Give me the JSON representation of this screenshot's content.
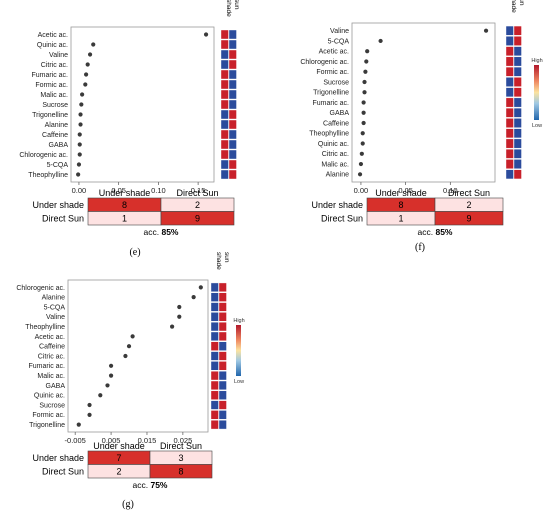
{
  "colors": {
    "high": "#c8202a",
    "low": "#2b4b9c",
    "dot": "#3a3a3a",
    "conf_high": "#d7302b",
    "conf_low": "#fde2e2"
  },
  "chart_data": [
    {
      "type": "scatter",
      "panel_label": "(e)",
      "features": [
        "Acetic ac.",
        "Quinic ac.",
        "Valine",
        "Citric ac.",
        "Fumaric ac.",
        "Formic ac.",
        "Malic ac.",
        "Sucrose",
        "Trigonelline",
        "Alanine",
        "Caffeine",
        "GABA",
        "Chlorogenic ac.",
        "5-CQA",
        "Theophylline"
      ],
      "values": [
        0.16,
        0.018,
        0.014,
        0.011,
        0.009,
        0.008,
        0.004,
        0.003,
        0.002,
        0.002,
        0.001,
        0.001,
        0.001,
        0.0,
        -0.001
      ],
      "xlim": [
        -0.01,
        0.17
      ],
      "xticks": [
        "0.00",
        "0.05",
        "0.10",
        "0.15"
      ],
      "xtick_values": [
        0,
        0.05,
        0.1,
        0.15
      ],
      "heat_headers": [
        "shade",
        "sun"
      ],
      "heat_colors": [
        [
          "high",
          "low"
        ],
        [
          "high",
          "low"
        ],
        [
          "low",
          "high"
        ],
        [
          "low",
          "high"
        ],
        [
          "high",
          "low"
        ],
        [
          "high",
          "low"
        ],
        [
          "high",
          "low"
        ],
        [
          "high",
          "low"
        ],
        [
          "low",
          "high"
        ],
        [
          "low",
          "high"
        ],
        [
          "high",
          "low"
        ],
        [
          "high",
          "low"
        ],
        [
          "high",
          "low"
        ],
        [
          "low",
          "high"
        ],
        [
          "low",
          "high"
        ]
      ],
      "show_color_legend": false,
      "confusion": {
        "columns": [
          "Under shade",
          "Direct Sun"
        ],
        "rows": [
          {
            "label": "Under shade",
            "values": [
              8,
              2
            ]
          },
          {
            "label": "Direct Sun",
            "values": [
              1,
              9
            ]
          }
        ],
        "accuracy_prefix": "acc.",
        "accuracy": "85%"
      }
    },
    {
      "type": "scatter",
      "panel_label": "(f)",
      "features": [
        "Valine",
        "5-CQA",
        "Acetic ac.",
        "Chlorogenic ac.",
        "Formic ac.",
        "Sucrose",
        "Trigonelline",
        "Fumaric ac.",
        "GABA",
        "Caffeine",
        "Theophylline",
        "Quinic ac.",
        "Citric ac.",
        "Malic ac.",
        "Alanine"
      ],
      "values": [
        0.14,
        0.022,
        0.007,
        0.006,
        0.005,
        0.004,
        0.004,
        0.003,
        0.003,
        0.003,
        0.002,
        0.002,
        0.001,
        0.0,
        -0.001
      ],
      "xlim": [
        -0.01,
        0.15
      ],
      "xticks": [
        "0.00",
        "0.05",
        "0.10"
      ],
      "xtick_values": [
        0,
        0.05,
        0.1
      ],
      "heat_headers": [
        "shade",
        "sun"
      ],
      "heat_colors": [
        [
          "low",
          "high"
        ],
        [
          "low",
          "high"
        ],
        [
          "high",
          "low"
        ],
        [
          "high",
          "low"
        ],
        [
          "high",
          "low"
        ],
        [
          "low",
          "high"
        ],
        [
          "low",
          "high"
        ],
        [
          "high",
          "low"
        ],
        [
          "high",
          "low"
        ],
        [
          "high",
          "low"
        ],
        [
          "high",
          "low"
        ],
        [
          "high",
          "low"
        ],
        [
          "high",
          "low"
        ],
        [
          "high",
          "low"
        ],
        [
          "low",
          "high"
        ]
      ],
      "show_color_legend": true,
      "legend_high": "High",
      "legend_low": "Low",
      "confusion": {
        "columns": [
          "Under shade",
          "Direct Sun"
        ],
        "rows": [
          {
            "label": "Under shade",
            "values": [
              8,
              2
            ]
          },
          {
            "label": "Direct Sun",
            "values": [
              1,
              9
            ]
          }
        ],
        "accuracy_prefix": "acc.",
        "accuracy": "85%"
      }
    },
    {
      "type": "scatter",
      "panel_label": "(g)",
      "features": [
        "Chlorogenic ac.",
        "Alanine",
        "5-CQA",
        "Valine",
        "Theophylline",
        "Acetic ac.",
        "Caffeine",
        "Citric ac.",
        "Fumaric ac.",
        "Malic ac.",
        "GABA",
        "Quinic ac.",
        "Sucrose",
        "Formic ac.",
        "Trigonelline"
      ],
      "values": [
        0.03,
        0.028,
        0.024,
        0.024,
        0.022,
        0.011,
        0.01,
        0.009,
        0.005,
        0.005,
        0.004,
        0.002,
        -0.001,
        -0.001,
        -0.004
      ],
      "xlim": [
        -0.007,
        0.032
      ],
      "xticks": [
        "-0.005",
        "0.005",
        "0.015",
        "0.025"
      ],
      "xtick_values": [
        -0.005,
        0.005,
        0.015,
        0.025
      ],
      "heat_headers": [
        "shade",
        "sun"
      ],
      "heat_colors": [
        [
          "low",
          "high"
        ],
        [
          "low",
          "high"
        ],
        [
          "low",
          "high"
        ],
        [
          "low",
          "high"
        ],
        [
          "low",
          "high"
        ],
        [
          "low",
          "high"
        ],
        [
          "high",
          "low"
        ],
        [
          "low",
          "high"
        ],
        [
          "low",
          "high"
        ],
        [
          "high",
          "low"
        ],
        [
          "high",
          "low"
        ],
        [
          "high",
          "low"
        ],
        [
          "low",
          "high"
        ],
        [
          "high",
          "low"
        ],
        [
          "high",
          "low"
        ]
      ],
      "show_color_legend": true,
      "legend_high": "High",
      "legend_low": "Low",
      "confusion": {
        "columns": [
          "Under shade",
          "Direct Sun"
        ],
        "rows": [
          {
            "label": "Under shade",
            "values": [
              7,
              3
            ]
          },
          {
            "label": "Direct Sun",
            "values": [
              2,
              8
            ]
          }
        ],
        "accuracy_prefix": "acc.",
        "accuracy": "75%"
      }
    }
  ]
}
